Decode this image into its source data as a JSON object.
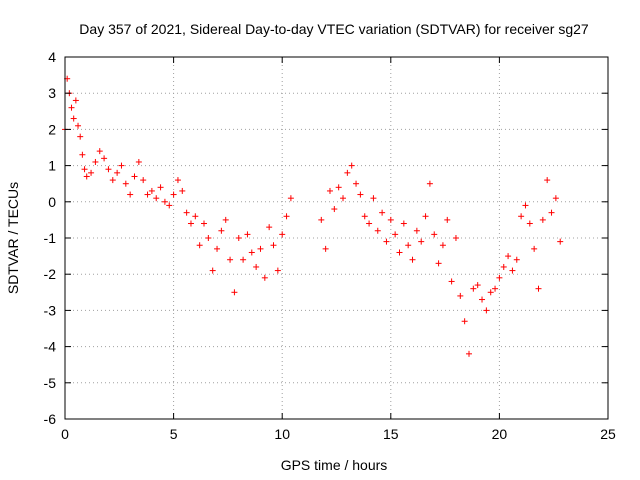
{
  "chart_data": {
    "type": "scatter",
    "title": "Day 357 of 2021, Sidereal Day-to-day VTEC variation (SDTVAR) for receiver sg27",
    "xlabel": "GPS time / hours",
    "ylabel": "SDTVAR / TECUs",
    "xlim": [
      0,
      25
    ],
    "ylim": [
      -6,
      4
    ],
    "xticks": [
      "0",
      "5",
      "10",
      "15",
      "20",
      "25"
    ],
    "yticks": [
      "-6",
      "-5",
      "-4",
      "-3",
      "-2",
      "-1",
      "0",
      "1",
      "2",
      "3",
      "4"
    ],
    "grid": true,
    "marker": "+",
    "color": "#ff0000",
    "series": [
      {
        "name": "SDTVAR",
        "x": [
          0.0,
          0.1,
          0.2,
          0.3,
          0.4,
          0.5,
          0.6,
          0.7,
          0.8,
          0.9,
          1.0,
          1.2,
          1.4,
          1.6,
          1.8,
          2.0,
          2.2,
          2.4,
          2.6,
          2.8,
          3.0,
          3.2,
          3.4,
          3.6,
          3.8,
          4.0,
          4.2,
          4.4,
          4.6,
          4.8,
          5.0,
          5.2,
          5.4,
          5.6,
          5.8,
          6.0,
          6.2,
          6.4,
          6.6,
          6.8,
          7.0,
          7.2,
          7.4,
          7.6,
          7.8,
          8.0,
          8.2,
          8.4,
          8.6,
          8.8,
          9.0,
          9.2,
          9.4,
          9.6,
          9.8,
          10.0,
          10.2,
          10.4,
          11.8,
          12.0,
          12.2,
          12.4,
          12.6,
          12.8,
          13.0,
          13.2,
          13.4,
          13.6,
          13.8,
          14.0,
          14.2,
          14.4,
          14.6,
          14.8,
          15.0,
          15.2,
          15.4,
          15.6,
          15.8,
          16.0,
          16.2,
          16.4,
          16.6,
          16.8,
          17.0,
          17.2,
          17.4,
          17.6,
          17.8,
          18.0,
          18.2,
          18.4,
          18.6,
          18.8,
          19.0,
          19.2,
          19.4,
          19.6,
          19.8,
          20.0,
          20.2,
          20.4,
          20.6,
          20.8,
          21.0,
          21.2,
          21.4,
          21.6,
          21.8,
          22.0,
          22.2,
          22.4,
          22.6,
          22.8
        ],
        "y": [
          2.0,
          3.4,
          3.0,
          2.6,
          2.3,
          2.8,
          2.1,
          1.8,
          1.3,
          0.9,
          0.7,
          0.8,
          1.1,
          1.4,
          1.2,
          0.9,
          0.6,
          0.8,
          1.0,
          0.5,
          0.2,
          0.7,
          1.1,
          0.6,
          0.2,
          0.3,
          0.1,
          0.4,
          0.0,
          -0.1,
          0.2,
          0.6,
          0.3,
          -0.3,
          -0.6,
          -0.4,
          -1.2,
          -0.6,
          -1.0,
          -1.9,
          -1.3,
          -0.8,
          -0.5,
          -1.6,
          -2.5,
          -1.0,
          -1.6,
          -0.9,
          -1.4,
          -1.8,
          -1.3,
          -2.1,
          -0.7,
          -1.2,
          -1.9,
          -0.9,
          -0.4,
          0.1,
          -0.5,
          -1.3,
          0.3,
          -0.2,
          0.4,
          0.1,
          0.8,
          1.0,
          0.5,
          0.2,
          -0.4,
          -0.6,
          0.1,
          -0.8,
          -0.3,
          -1.1,
          -0.5,
          -0.9,
          -1.4,
          -0.6,
          -1.2,
          -1.6,
          -0.8,
          -1.1,
          -0.4,
          0.5,
          -0.9,
          -1.7,
          -1.2,
          -0.5,
          -2.2,
          -1.0,
          -2.6,
          -3.3,
          -4.2,
          -2.4,
          -2.3,
          -2.7,
          -3.0,
          -2.5,
          -2.4,
          -2.1,
          -1.8,
          -1.5,
          -1.9,
          -1.6,
          -0.4,
          -0.1,
          -0.6,
          -1.3,
          -2.4,
          -0.5,
          0.6,
          -0.3,
          0.1,
          -1.1
        ]
      }
    ]
  }
}
